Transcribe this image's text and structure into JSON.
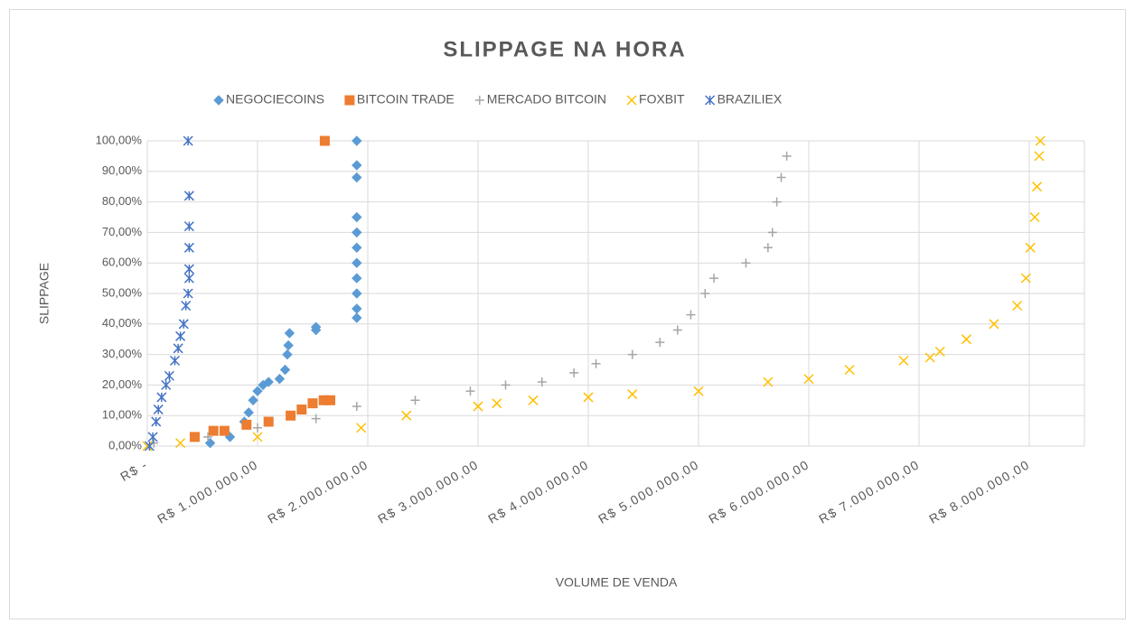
{
  "chart_data": {
    "type": "scatter",
    "title": "SLIPPAGE NA HORA",
    "x_label": "VOLUME DE VENDA",
    "y_label": "SLIPPAGE",
    "xlim": [
      0,
      8500000
    ],
    "ylim": [
      0,
      100
    ],
    "xticks": [
      {
        "value": 0,
        "label": "R$ -"
      },
      {
        "value": 1000000,
        "label": "R$ 1.000.000,00"
      },
      {
        "value": 2000000,
        "label": "R$ 2.000.000,00"
      },
      {
        "value": 3000000,
        "label": "R$ 3.000.000,00"
      },
      {
        "value": 4000000,
        "label": "R$ 4.000.000,00"
      },
      {
        "value": 5000000,
        "label": "R$ 5.000.000,00"
      },
      {
        "value": 6000000,
        "label": "R$ 6.000.000,00"
      },
      {
        "value": 7000000,
        "label": "R$ 7.000.000,00"
      },
      {
        "value": 8000000,
        "label": "R$ 8.000.000,00"
      }
    ],
    "yticks": [
      {
        "value": 0,
        "label": "0,00%"
      },
      {
        "value": 10,
        "label": "10,00%"
      },
      {
        "value": 20,
        "label": "20,00%"
      },
      {
        "value": 30,
        "label": "30,00%"
      },
      {
        "value": 40,
        "label": "40,00%"
      },
      {
        "value": 50,
        "label": "50,00%"
      },
      {
        "value": 60,
        "label": "60,00%"
      },
      {
        "value": 70,
        "label": "70,00%"
      },
      {
        "value": 80,
        "label": "80,00%"
      },
      {
        "value": 90,
        "label": "90,00%"
      },
      {
        "value": 100,
        "label": "100,00%"
      }
    ],
    "grid": true,
    "legend": "top",
    "series": [
      {
        "name": "NEGOCIECOINS",
        "color": "#5b9bd5",
        "marker": "diamond",
        "x": [
          570000,
          750000,
          880000,
          920000,
          960000,
          1000000,
          1050000,
          1100000,
          1200000,
          1250000,
          1270000,
          1280000,
          1290000,
          1530000,
          1530000,
          1900000,
          1900000,
          1900000,
          1900000,
          1900000,
          1900000,
          1900000,
          1900000,
          1900000,
          1900000,
          1900000
        ],
        "y": [
          1,
          3,
          8,
          11,
          15,
          18,
          20,
          21,
          22,
          25,
          30,
          33,
          37,
          38,
          39,
          42,
          45,
          50,
          55,
          60,
          65,
          70,
          75,
          88,
          92,
          100
        ]
      },
      {
        "name": "BITCOIN TRADE",
        "color": "#ed7d31",
        "marker": "square",
        "x": [
          430000,
          600000,
          700000,
          900000,
          1100000,
          1300000,
          1400000,
          1500000,
          1600000,
          1660000,
          1610000
        ],
        "y": [
          3,
          5,
          5,
          7,
          8,
          10,
          12,
          14,
          15,
          15,
          100
        ]
      },
      {
        "name": "MERCADO BITCOIN",
        "color": "#a5a5a5",
        "marker": "plus",
        "x": [
          60000,
          550000,
          1000000,
          1530000,
          1900000,
          2430000,
          2930000,
          3250000,
          3580000,
          3870000,
          4070000,
          4400000,
          4650000,
          4810000,
          4930000,
          5060000,
          5140000,
          5430000,
          5630000,
          5670000,
          5710000,
          5750000,
          5800000
        ],
        "y": [
          1,
          3,
          6,
          9,
          13,
          15,
          18,
          20,
          21,
          24,
          27,
          30,
          34,
          38,
          43,
          50,
          55,
          60,
          65,
          70,
          80,
          88,
          95
        ]
      },
      {
        "name": "FOXBIT",
        "color": "#ffc000",
        "marker": "x",
        "x": [
          0,
          300000,
          1000000,
          1940000,
          2350000,
          3000000,
          3170000,
          3500000,
          4000000,
          4400000,
          5000000,
          5630000,
          6000000,
          6370000,
          6860000,
          7100000,
          7190000,
          7430000,
          7680000,
          7890000,
          7970000,
          8010000,
          8050000,
          8070000,
          8090000,
          8100000
        ],
        "y": [
          0,
          1,
          3,
          6,
          10,
          13,
          14,
          15,
          16,
          17,
          18,
          21,
          22,
          25,
          28,
          29,
          31,
          35,
          40,
          46,
          55,
          65,
          75,
          85,
          95,
          100
        ]
      },
      {
        "name": "BRAZILIEX",
        "color": "#4472c4",
        "marker": "asterisk",
        "x": [
          20000,
          50000,
          80000,
          100000,
          130000,
          170000,
          200000,
          250000,
          280000,
          300000,
          330000,
          350000,
          370000,
          380000,
          380000,
          380000,
          380000,
          380000,
          370000
        ],
        "y": [
          0,
          3,
          8,
          12,
          16,
          20,
          23,
          28,
          32,
          36,
          40,
          46,
          50,
          55,
          58,
          65,
          72,
          82,
          100
        ]
      }
    ]
  }
}
